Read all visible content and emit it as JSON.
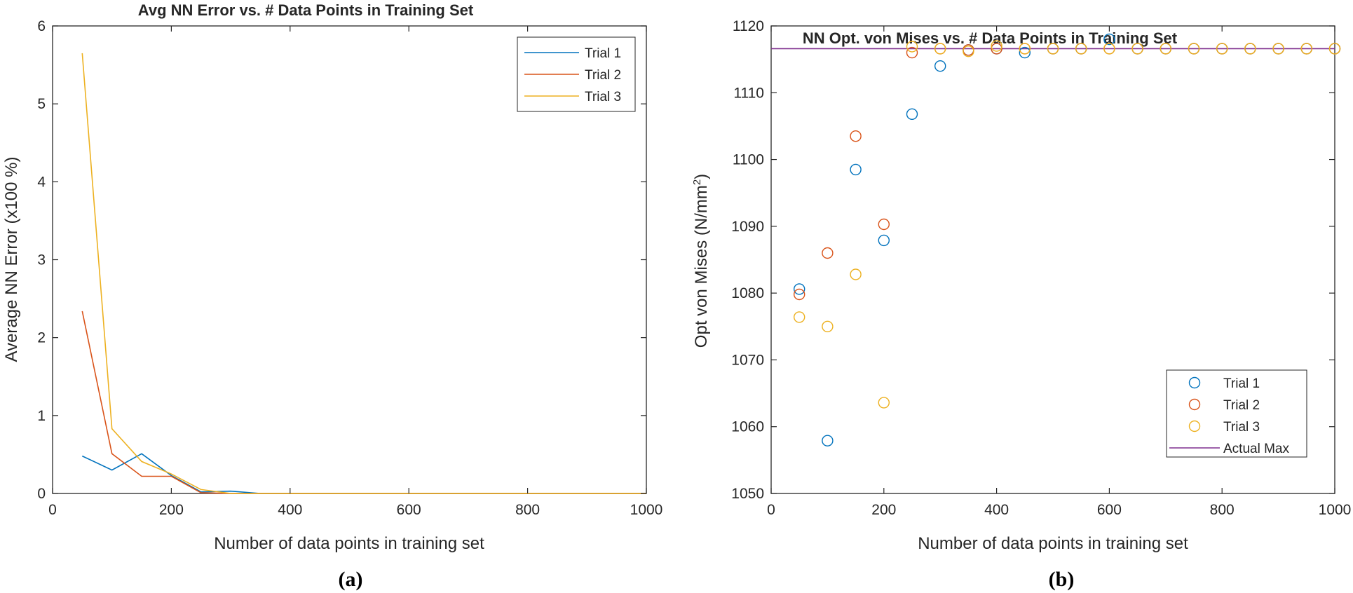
{
  "chart_data": [
    {
      "type": "line",
      "panel_label": "(a)",
      "title": "Avg NN Error vs. # Data Points in Training Set",
      "xlabel": "Number of data points in training set",
      "ylabel": "Average NN Error (x100 %)",
      "xlim": [
        0,
        1000
      ],
      "ylim": [
        0,
        6
      ],
      "xticks": [
        "0",
        "200",
        "400",
        "600",
        "800",
        "1000"
      ],
      "yticks": [
        "0",
        "1",
        "2",
        "3",
        "4",
        "5",
        "6"
      ],
      "grid": false,
      "legend_position": "top-right",
      "x": [
        50,
        100,
        150,
        200,
        250,
        300,
        350,
        400,
        450,
        500,
        550,
        600,
        650,
        700,
        750,
        800,
        850,
        900,
        950,
        1000
      ],
      "series": [
        {
          "name": "Trial 1",
          "color": "#0072BD",
          "values": [
            0.48,
            0.3,
            0.51,
            0.23,
            0.02,
            0.03,
            0.0,
            0.0,
            0.0,
            0.0,
            0.0,
            0.0,
            0.0,
            0.0,
            0.0,
            0.0,
            0.0,
            0.0,
            0.0,
            0.0
          ]
        },
        {
          "name": "Trial 2",
          "color": "#D95319",
          "values": [
            2.34,
            0.51,
            0.22,
            0.22,
            0.01,
            0.0,
            0.0,
            0.0,
            0.0,
            0.0,
            0.0,
            0.0,
            0.0,
            0.0,
            0.0,
            0.0,
            0.0,
            0.0,
            0.0,
            0.0
          ]
        },
        {
          "name": "Trial 3",
          "color": "#EDB120",
          "values": [
            5.65,
            0.83,
            0.41,
            0.25,
            0.05,
            0.0,
            0.0,
            0.0,
            0.0,
            0.0,
            0.0,
            0.0,
            0.0,
            0.0,
            0.0,
            0.0,
            0.0,
            0.0,
            0.0,
            0.0
          ]
        }
      ]
    },
    {
      "type": "scatter",
      "panel_label": "(b)",
      "title": "NN Opt. von Mises vs. # Data Points in Training Set",
      "xlabel": "Number of data points in training set",
      "ylabel": "Opt von Mises (N/mm",
      "ylabel_sup": "2",
      "ylabel_end": ")",
      "xlim": [
        0,
        1000
      ],
      "ylim": [
        1050,
        1120
      ],
      "xticks": [
        "0",
        "200",
        "400",
        "600",
        "800",
        "1000"
      ],
      "yticks": [
        "1050",
        "1060",
        "1070",
        "1080",
        "1090",
        "1100",
        "1110",
        "1120"
      ],
      "grid": false,
      "legend_position": "bottom-right",
      "x": [
        50,
        100,
        150,
        200,
        250,
        300,
        350,
        400,
        450,
        500,
        550,
        600,
        650,
        700,
        750,
        800,
        850,
        900,
        950,
        1000
      ],
      "series": [
        {
          "name": "Trial 1",
          "color": "#0072BD",
          "values": [
            1080.6,
            1057.9,
            1098.5,
            1087.9,
            1106.8,
            1114.0,
            1116.4,
            1116.6,
            1116.0,
            1116.6,
            1116.6,
            1118.0,
            1116.6,
            1116.6,
            1116.6,
            1116.6,
            1116.6,
            1116.6,
            1116.6,
            1116.6
          ]
        },
        {
          "name": "Trial 2",
          "color": "#D95319",
          "values": [
            1079.8,
            1086.0,
            1103.5,
            1090.3,
            1116.0,
            1116.6,
            1116.4,
            1116.6,
            1116.6,
            1116.6,
            1116.6,
            1116.6,
            1116.6,
            1116.6,
            1116.6,
            1116.6,
            1116.6,
            1116.6,
            1116.6,
            1116.6
          ]
        },
        {
          "name": "Trial 3",
          "color": "#EDB120",
          "values": [
            1076.4,
            1075.0,
            1082.8,
            1063.6,
            1116.9,
            1116.6,
            1116.2,
            1117.0,
            1116.6,
            1116.6,
            1116.6,
            1116.6,
            1116.6,
            1116.6,
            1116.6,
            1116.6,
            1116.6,
            1116.6,
            1116.6,
            1116.6
          ]
        }
      ],
      "reference_line": {
        "name": "Actual Max",
        "color": "#7E2F8E",
        "y": 1116.6
      }
    }
  ]
}
